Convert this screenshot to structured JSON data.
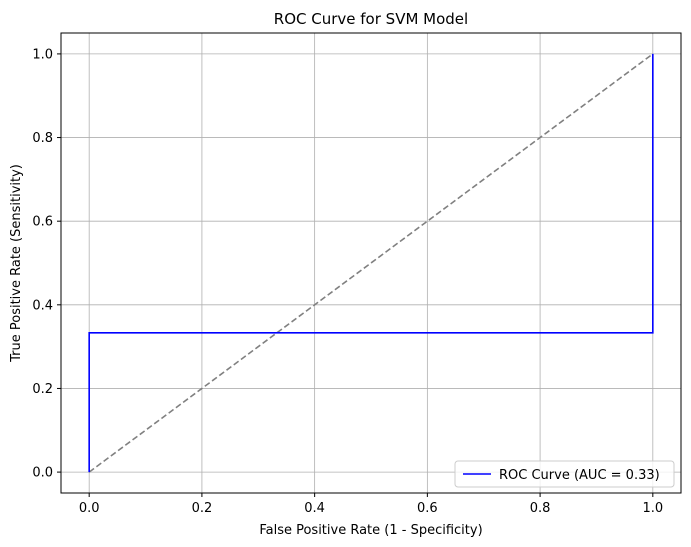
{
  "chart_data": {
    "type": "line",
    "title": "ROC Curve for SVM Model",
    "xlabel": "False Positive Rate (1 - Specificity)",
    "ylabel": "True Positive Rate (Sensitivity)",
    "xlim": [
      -0.05,
      1.05
    ],
    "ylim": [
      -0.05,
      1.05
    ],
    "xticks": [
      0.0,
      0.2,
      0.4,
      0.6,
      0.8,
      1.0
    ],
    "xtick_labels": [
      "0.0",
      "0.2",
      "0.4",
      "0.6",
      "0.8",
      "1.0"
    ],
    "yticks": [
      0.0,
      0.2,
      0.4,
      0.6,
      0.8,
      1.0
    ],
    "ytick_labels": [
      "0.0",
      "0.2",
      "0.4",
      "0.6",
      "0.8",
      "1.0"
    ],
    "grid": true,
    "legend_position": "lower-right",
    "series": [
      {
        "name": "ROC Curve (AUC = 0.33)",
        "color": "#0000ff",
        "style": "solid",
        "x": [
          0.0,
          0.0,
          1.0,
          1.0
        ],
        "y": [
          0.0,
          0.333,
          0.333,
          1.0
        ]
      },
      {
        "color": "#808080",
        "style": "dashed",
        "x": [
          0.0,
          1.0
        ],
        "y": [
          0.0,
          1.0
        ]
      }
    ]
  }
}
